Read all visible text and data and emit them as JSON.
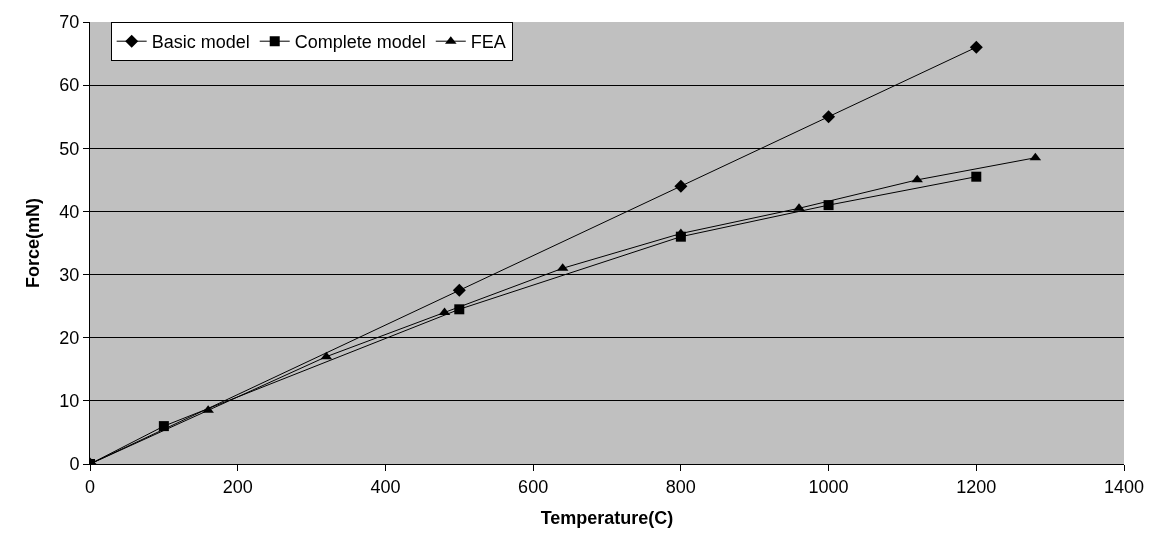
{
  "chart_data": {
    "type": "line",
    "xlabel": "Temperature(C)",
    "ylabel": "Force(mN)",
    "xlim": [
      0,
      1400
    ],
    "xticks": [
      0,
      200,
      400,
      600,
      800,
      1000,
      1200,
      1400
    ],
    "ylim": [
      0,
      70
    ],
    "yticks": [
      0,
      10,
      20,
      30,
      40,
      50,
      60,
      70
    ],
    "grid": "y",
    "legend": "top left",
    "line_style": "solid",
    "series": [
      {
        "name": "Basic model",
        "color": "#000000",
        "marker": "diamond",
        "x": [
          0,
          500,
          800,
          1000,
          1200
        ],
        "values": [
          0,
          27.5,
          44,
          55,
          66
        ]
      },
      {
        "name": "Complete model",
        "color": "#000000",
        "marker": "square",
        "x": [
          0,
          100,
          500,
          800,
          1000,
          1200
        ],
        "values": [
          0,
          6,
          24.5,
          36,
          41,
          45.5
        ]
      },
      {
        "name": "FEA",
        "color": "#000000",
        "marker": "triangle",
        "x": [
          0,
          160,
          320,
          480,
          640,
          800,
          960,
          1120,
          1280
        ],
        "values": [
          0,
          8.5,
          17,
          24,
          31,
          36.5,
          40.5,
          45,
          48.5
        ]
      }
    ]
  }
}
